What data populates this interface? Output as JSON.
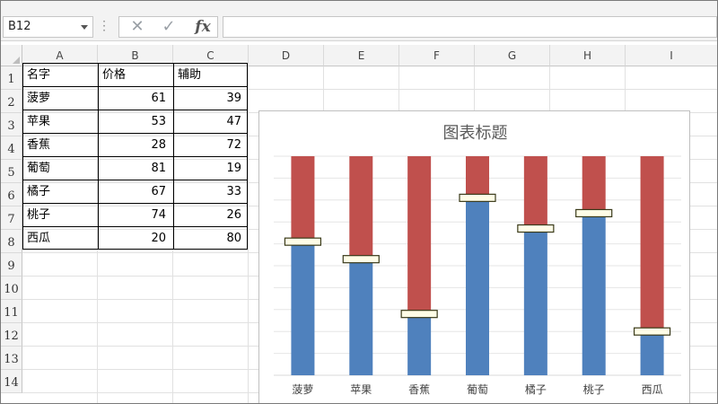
{
  "formula_bar": {
    "name_box": "B12",
    "cancel_icon": "✕",
    "enter_icon": "✓",
    "fx_label": "fx",
    "formula": ""
  },
  "columns": [
    "A",
    "B",
    "C",
    "D",
    "E",
    "F",
    "G",
    "H",
    "I"
  ],
  "rows": [
    "1",
    "2",
    "3",
    "4",
    "5",
    "6",
    "7",
    "8",
    "9",
    "10",
    "11",
    "12",
    "13",
    "14"
  ],
  "table": {
    "headers": [
      "名字",
      "价格",
      "辅助"
    ],
    "rows": [
      [
        "菠萝",
        "61",
        "39"
      ],
      [
        "苹果",
        "53",
        "47"
      ],
      [
        "香蕉",
        "28",
        "72"
      ],
      [
        "葡萄",
        "81",
        "19"
      ],
      [
        "橘子",
        "67",
        "33"
      ],
      [
        "桃子",
        "74",
        "26"
      ],
      [
        "西瓜",
        "20",
        "80"
      ]
    ]
  },
  "chart_data": {
    "type": "bar",
    "stacked": true,
    "title": "图表标题",
    "categories": [
      "菠萝",
      "苹果",
      "香蕉",
      "葡萄",
      "橘子",
      "桃子",
      "西瓜"
    ],
    "series": [
      {
        "name": "价格",
        "values": [
          61,
          53,
          28,
          81,
          67,
          74,
          20
        ],
        "color": "#4f81bd"
      },
      {
        "name": "辅助",
        "values": [
          39,
          47,
          72,
          19,
          33,
          26,
          80
        ],
        "color": "#c0504d"
      }
    ],
    "ylim": [
      0,
      100
    ],
    "grid": true,
    "legend": "none",
    "marker": "white box at top of 价格 bar"
  },
  "colors": {
    "blue": "#4f81bd",
    "red": "#c0504d",
    "marker_fill": "#fffde7",
    "marker_stroke": "#3a3a1a"
  }
}
